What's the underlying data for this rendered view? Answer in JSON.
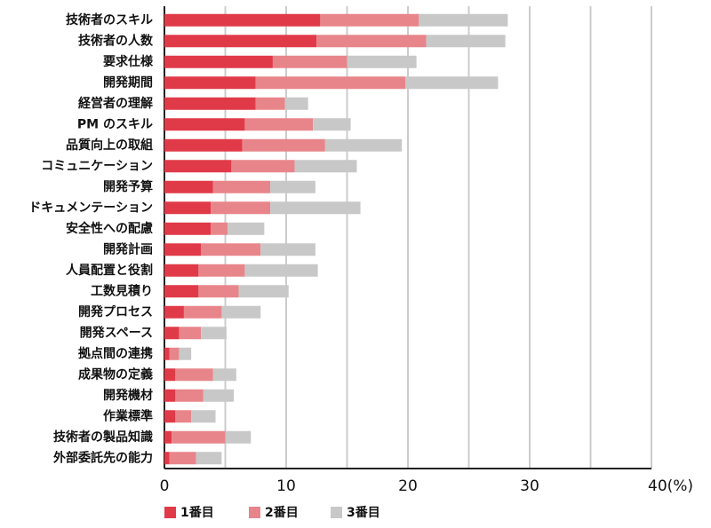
{
  "chart_data": {
    "type": "stacked_barh",
    "categories": [
      "技術者のスキル",
      "技術者の人数",
      "要求仕様",
      "開発期間",
      "経営者の理解",
      "PM のスキル",
      "品質向上の取組",
      "コミュニケーション",
      "開発予算",
      "ドキュメンテーション",
      "安全性への配慮",
      "開発計画",
      "人員配置と役割",
      "工数見積り",
      "開発プロセス",
      "開発スペース",
      "拠点間の連携",
      "成果物の定義",
      "開発機材",
      "作業標準",
      "技術者の製品知識",
      "外部委託先の能力"
    ],
    "series": [
      {
        "name": "1番目",
        "color": "#e03a48",
        "values": [
          12.8,
          12.5,
          8.9,
          7.5,
          7.5,
          6.6,
          6.4,
          5.5,
          4.0,
          3.8,
          3.8,
          3.0,
          2.8,
          2.8,
          1.6,
          1.2,
          0.4,
          0.9,
          0.9,
          0.9,
          0.6,
          0.4
        ]
      },
      {
        "name": "2番目",
        "color": "#e8858a",
        "values": [
          8.1,
          9.0,
          6.1,
          12.3,
          2.4,
          5.6,
          6.8,
          5.2,
          4.7,
          4.9,
          1.4,
          4.9,
          3.8,
          3.3,
          3.1,
          1.8,
          0.8,
          3.1,
          2.3,
          1.3,
          4.4,
          2.2
        ]
      },
      {
        "name": "3番目",
        "color": "#c8c8c8",
        "values": [
          7.3,
          6.5,
          5.7,
          7.6,
          1.9,
          3.1,
          6.3,
          5.1,
          3.7,
          7.4,
          3.0,
          4.5,
          6.0,
          4.1,
          3.2,
          2.1,
          1.0,
          1.9,
          2.5,
          2.0,
          2.1,
          2.1
        ]
      }
    ],
    "xlim": [
      0,
      40
    ],
    "xticks": [
      0,
      10,
      20,
      30,
      {
        "value": 40,
        "label": "40(%)"
      }
    ],
    "minor_xticks": [
      5,
      15,
      25,
      35
    ],
    "grid": true,
    "legend": "bottom"
  }
}
